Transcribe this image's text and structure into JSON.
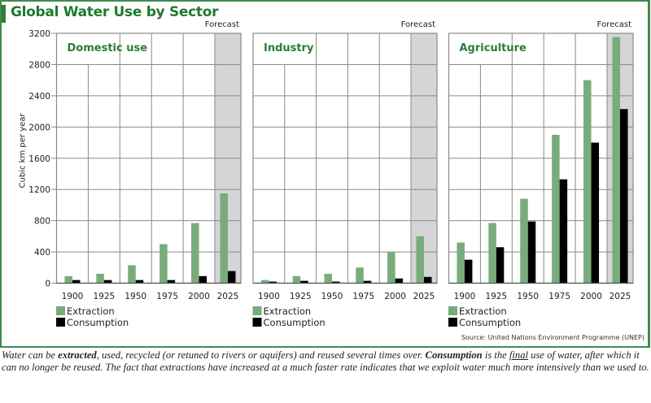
{
  "title": "Global Water Use by Sector",
  "source": "Source: United Nations Environment Programme (UNEP)",
  "caption": {
    "parts": [
      {
        "text": "Water can be ",
        "style": "normal"
      },
      {
        "text": "extracted",
        "style": "bold"
      },
      {
        "text": ", used, recycled (or retuned to rivers or aquifers) and reused several times over. ",
        "style": "normal"
      },
      {
        "text": "Consumption",
        "style": "bold"
      },
      {
        "text": " is the ",
        "style": "normal"
      },
      {
        "text": "final",
        "style": "underline"
      },
      {
        "text": " use of water, after which it can no longer be reused. The fact that extractions have increased at a much faster rate indicates that we exploit water much more intensively than we used to.",
        "style": "normal"
      }
    ]
  },
  "colors": {
    "extraction": "#78ac7c",
    "consumption": "#000000",
    "forecast_shade": "#d3d5d6",
    "grid": "#8a8a8a",
    "title": "#1e7a2e",
    "frame": "#3f8b4f"
  },
  "chart_data": {
    "type": "bar",
    "title": "Global Water Use by Sector",
    "ylabel": "Cubic km per year",
    "xlabel": "",
    "ylim": [
      0,
      3200
    ],
    "yticks": [
      0,
      400,
      800,
      1200,
      1600,
      2000,
      2400,
      2800,
      3200
    ],
    "grid": true,
    "forecast_label": "Forecast",
    "forecast_categories": [
      "2025"
    ],
    "categories": [
      "1900",
      "1925",
      "1950",
      "1975",
      "2000",
      "2025"
    ],
    "legend": [
      "Extraction",
      "Consumption"
    ],
    "legend_position": "bottom-left of each panel",
    "panels": [
      {
        "title": "Domestic use",
        "series": [
          {
            "name": "Extraction",
            "values": [
              90,
              120,
              230,
              500,
              770,
              1150
            ]
          },
          {
            "name": "Consumption",
            "values": [
              40,
              40,
              40,
              40,
              90,
              155
            ]
          }
        ]
      },
      {
        "title": "Industry",
        "series": [
          {
            "name": "Extraction",
            "values": [
              40,
              90,
              120,
              200,
              395,
              600
            ]
          },
          {
            "name": "Consumption",
            "values": [
              20,
              30,
              20,
              30,
              60,
              80
            ]
          }
        ]
      },
      {
        "title": "Agriculture",
        "series": [
          {
            "name": "Extraction",
            "values": [
              520,
              770,
              1080,
              1900,
              2600,
              3150
            ]
          },
          {
            "name": "Consumption",
            "values": [
              300,
              460,
              790,
              1330,
              1800,
              2230
            ]
          }
        ]
      }
    ]
  }
}
